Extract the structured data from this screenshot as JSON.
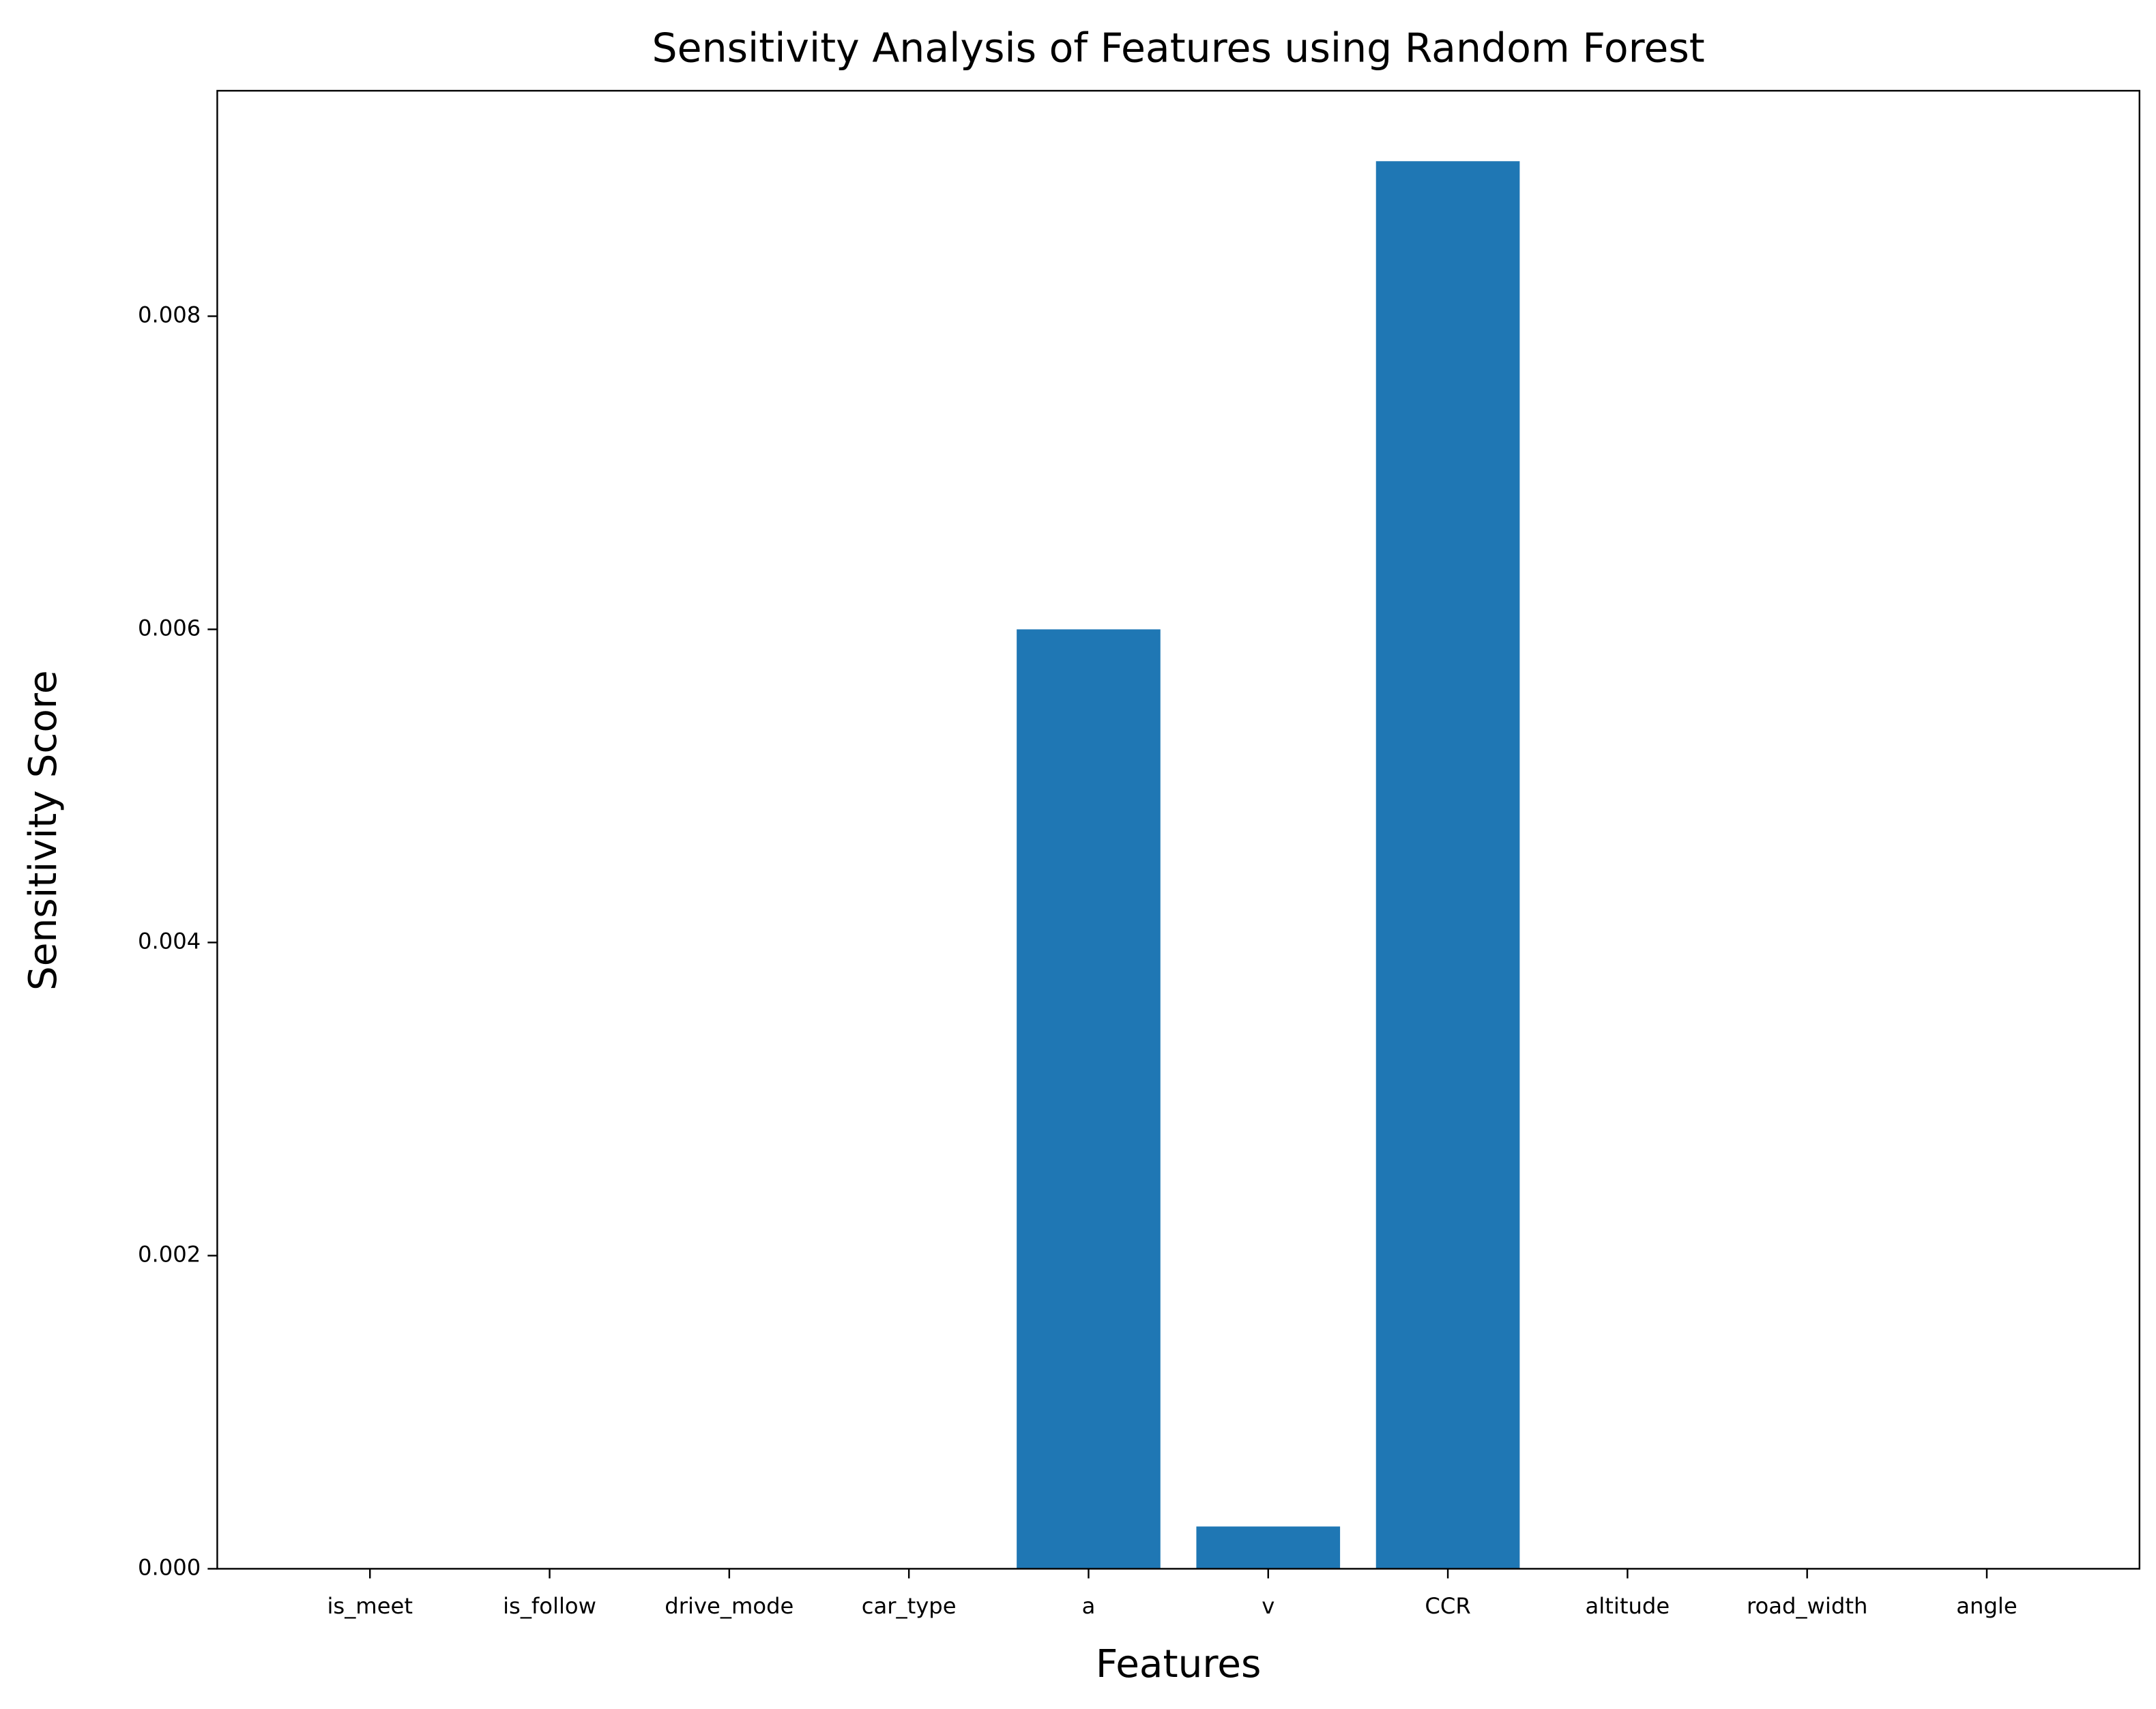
{
  "chart_data": {
    "type": "bar",
    "title": "Sensitivity Analysis of Features using Random Forest",
    "x_label": "Features",
    "y_label": "Sensitivity Score",
    "categories": [
      "is_meet",
      "is_follow",
      "drive_mode",
      "car_type",
      "a",
      "v",
      "CCR",
      "altitude",
      "road_width",
      "angle"
    ],
    "values": [
      0,
      0,
      0,
      0,
      0.006,
      0.00027,
      0.00899,
      0,
      0,
      0
    ],
    "color": "#1f77b4",
    "ylim": [
      0,
      0.00944
    ],
    "yticks": [
      {
        "value": 0,
        "label": "0.000"
      },
      {
        "value": 0.002,
        "label": "0.002"
      },
      {
        "value": 0.004,
        "label": "0.004"
      },
      {
        "value": 0.006,
        "label": "0.006"
      },
      {
        "value": 0.008,
        "label": "0.008"
      }
    ],
    "grid": false
  }
}
